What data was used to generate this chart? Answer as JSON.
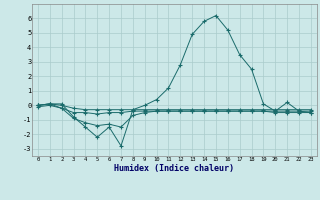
{
  "xlabel": "Humidex (Indice chaleur)",
  "xlim": [
    -0.5,
    23.5
  ],
  "ylim": [
    -3.5,
    7.0
  ],
  "yticks": [
    -3,
    -2,
    -1,
    0,
    1,
    2,
    3,
    4,
    5,
    6
  ],
  "xticks": [
    0,
    1,
    2,
    3,
    4,
    5,
    6,
    7,
    8,
    9,
    10,
    11,
    12,
    13,
    14,
    15,
    16,
    17,
    18,
    19,
    20,
    21,
    22,
    23
  ],
  "background_color": "#cce8e8",
  "grid_color": "#aacccc",
  "line_color": "#1a6b6b",
  "line1": [
    0.0,
    0.1,
    0.1,
    -0.8,
    -1.5,
    -2.2,
    -1.5,
    -2.8,
    -0.3,
    0.0,
    0.4,
    1.2,
    2.8,
    4.9,
    5.8,
    6.2,
    5.2,
    3.5,
    2.5,
    0.1,
    -0.4,
    0.2,
    -0.4,
    -0.5
  ],
  "line2": [
    0.0,
    0.1,
    -0.2,
    -0.9,
    -1.2,
    -1.4,
    -1.3,
    -1.5,
    -0.7,
    -0.5,
    -0.4,
    -0.4,
    -0.4,
    -0.4,
    -0.4,
    -0.4,
    -0.4,
    -0.4,
    -0.4,
    -0.4,
    -0.5,
    -0.5,
    -0.5,
    -0.5
  ],
  "line3": [
    -0.1,
    0.0,
    -0.2,
    -0.5,
    -0.5,
    -0.6,
    -0.5,
    -0.5,
    -0.4,
    -0.4,
    -0.4,
    -0.4,
    -0.4,
    -0.4,
    -0.4,
    -0.4,
    -0.4,
    -0.4,
    -0.4,
    -0.4,
    -0.4,
    -0.4,
    -0.4,
    -0.4
  ],
  "line4": [
    0.0,
    0.1,
    0.0,
    -0.2,
    -0.3,
    -0.3,
    -0.3,
    -0.3,
    -0.3,
    -0.3,
    -0.3,
    -0.3,
    -0.3,
    -0.3,
    -0.3,
    -0.3,
    -0.3,
    -0.3,
    -0.3,
    -0.3,
    -0.3,
    -0.3,
    -0.3,
    -0.3
  ]
}
